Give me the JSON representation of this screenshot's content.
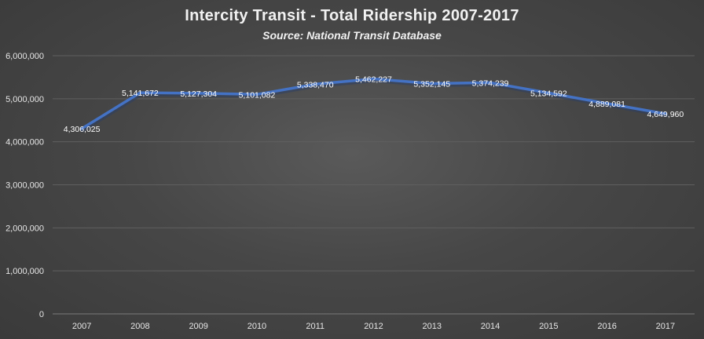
{
  "chart_data": {
    "type": "line",
    "title": "Intercity Transit - Total Ridership 2007-2017",
    "subtitle": "Source: National Transit Database",
    "xlabel": "",
    "ylabel": "",
    "categories": [
      "2007",
      "2008",
      "2009",
      "2010",
      "2011",
      "2012",
      "2013",
      "2014",
      "2015",
      "2016",
      "2017"
    ],
    "values": [
      4306025,
      5141672,
      5127304,
      5101082,
      5338470,
      5462227,
      5352145,
      5374239,
      5134592,
      4889081,
      4649960
    ],
    "data_labels": [
      "4,306,025",
      "5,141,672",
      "5,127,304",
      "5,101,082",
      "5,338,470",
      "5,462,227",
      "5,352,145",
      "5,374,239",
      "5,134,592",
      "4,889,081",
      "4,649,960"
    ],
    "ylim": [
      0,
      6000000
    ],
    "yticks": [
      0,
      1000000,
      2000000,
      3000000,
      4000000,
      5000000,
      6000000
    ],
    "ytick_labels": [
      "0",
      "1,000,000",
      "2,000,000",
      "3,000,000",
      "4,000,000",
      "5,000,000",
      "6,000,000"
    ],
    "grid": true,
    "line_color": "#4472c4",
    "background_color": "#404040"
  }
}
